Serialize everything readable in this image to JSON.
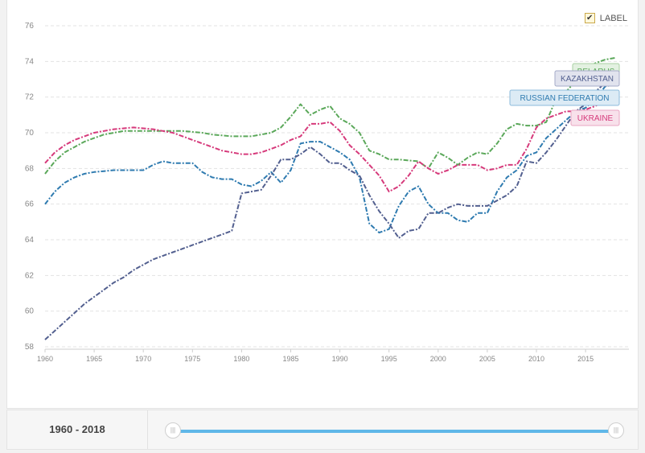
{
  "label_toggle": {
    "text": "LABEL",
    "checked": true
  },
  "range": {
    "start": "1960",
    "separator": " - ",
    "end": "2018"
  },
  "colors": {
    "Belarus": "#5ba85a",
    "Ukraine": "#d63a7b",
    "Russian Federation": "#2f7bb0",
    "Kazakhstan": "#525f8f"
  },
  "chart_data": {
    "type": "line",
    "xlim": [
      1960,
      2018
    ],
    "ylim": [
      58,
      76
    ],
    "yticks": [
      "58",
      "60",
      "62",
      "64",
      "66",
      "68",
      "70",
      "72",
      "74",
      "76"
    ],
    "xticks": [
      "1960",
      "1965",
      "1970",
      "1975",
      "1980",
      "1985",
      "1990",
      "1995",
      "2000",
      "2005",
      "2010",
      "2015"
    ],
    "grid": "horizontal dashed",
    "labels": [
      "BELARUS",
      "KAZAKHSTAN",
      "RUSSIAN FEDERATION",
      "UKRAINE"
    ],
    "x": [
      1960,
      1961,
      1962,
      1963,
      1964,
      1965,
      1966,
      1967,
      1968,
      1969,
      1970,
      1971,
      1972,
      1973,
      1974,
      1975,
      1976,
      1977,
      1978,
      1979,
      1980,
      1981,
      1982,
      1983,
      1984,
      1985,
      1986,
      1987,
      1988,
      1989,
      1990,
      1991,
      1992,
      1993,
      1994,
      1995,
      1996,
      1997,
      1998,
      1999,
      2000,
      2001,
      2002,
      2003,
      2004,
      2005,
      2006,
      2007,
      2008,
      2009,
      2010,
      2011,
      2012,
      2013,
      2014,
      2015,
      2016,
      2017,
      2018
    ],
    "series": [
      {
        "name": "Belarus",
        "values": [
          67.7,
          68.4,
          68.9,
          69.2,
          69.5,
          69.7,
          69.9,
          70.0,
          70.1,
          70.1,
          70.1,
          70.1,
          70.1,
          70.1,
          70.1,
          70.05,
          70.0,
          69.9,
          69.85,
          69.8,
          69.8,
          69.8,
          69.9,
          70.0,
          70.3,
          70.9,
          71.6,
          71.0,
          71.3,
          71.5,
          70.8,
          70.5,
          70.0,
          69.0,
          68.8,
          68.5,
          68.5,
          68.45,
          68.4,
          68.0,
          68.9,
          68.6,
          68.2,
          68.6,
          68.9,
          68.8,
          69.4,
          70.2,
          70.5,
          70.4,
          70.4,
          70.6,
          71.9,
          72.3,
          72.9,
          73.6,
          73.9,
          74.1,
          74.2
        ]
      },
      {
        "name": "Ukraine",
        "values": [
          68.3,
          68.9,
          69.3,
          69.6,
          69.8,
          70.0,
          70.1,
          70.2,
          70.25,
          70.3,
          70.25,
          70.2,
          70.1,
          70.0,
          69.8,
          69.6,
          69.4,
          69.2,
          69.0,
          68.9,
          68.8,
          68.8,
          68.9,
          69.1,
          69.3,
          69.6,
          69.8,
          70.5,
          70.5,
          70.6,
          70.1,
          69.3,
          68.8,
          68.2,
          67.6,
          66.7,
          67.0,
          67.6,
          68.4,
          68.0,
          67.7,
          67.9,
          68.2,
          68.2,
          68.2,
          67.9,
          68.0,
          68.2,
          68.2,
          69.1,
          70.3,
          70.8,
          71.0,
          71.2,
          71.2,
          71.3,
          71.5,
          71.8,
          71.8
        ]
      },
      {
        "name": "Russian Federation",
        "values": [
          66.0,
          66.7,
          67.2,
          67.5,
          67.7,
          67.8,
          67.85,
          67.9,
          67.9,
          67.9,
          67.9,
          68.2,
          68.4,
          68.3,
          68.3,
          68.3,
          67.8,
          67.5,
          67.4,
          67.4,
          67.1,
          67.0,
          67.3,
          67.8,
          67.2,
          67.9,
          69.4,
          69.5,
          69.5,
          69.2,
          68.9,
          68.5,
          67.5,
          64.9,
          64.4,
          64.6,
          65.9,
          66.7,
          67.0,
          66.0,
          65.5,
          65.5,
          65.1,
          65.0,
          65.5,
          65.5,
          66.7,
          67.5,
          67.9,
          68.7,
          68.9,
          69.7,
          70.2,
          70.7,
          71.2,
          71.4,
          71.9,
          72.6,
          72.7
        ]
      },
      {
        "name": "Kazakhstan",
        "values": [
          58.4,
          58.9,
          59.4,
          59.9,
          60.4,
          60.8,
          61.2,
          61.6,
          61.9,
          62.3,
          62.6,
          62.9,
          63.1,
          63.3,
          63.5,
          63.7,
          63.9,
          64.1,
          64.3,
          64.5,
          66.6,
          66.7,
          66.8,
          67.6,
          68.5,
          68.5,
          68.8,
          69.2,
          68.8,
          68.3,
          68.3,
          67.9,
          67.6,
          66.5,
          65.6,
          64.9,
          64.1,
          64.5,
          64.6,
          65.5,
          65.5,
          65.8,
          66.0,
          65.9,
          65.9,
          65.9,
          66.2,
          66.5,
          67.0,
          68.4,
          68.3,
          68.9,
          69.6,
          70.4,
          71.2,
          71.6,
          72.3,
          72.8,
          73.2
        ]
      }
    ]
  }
}
